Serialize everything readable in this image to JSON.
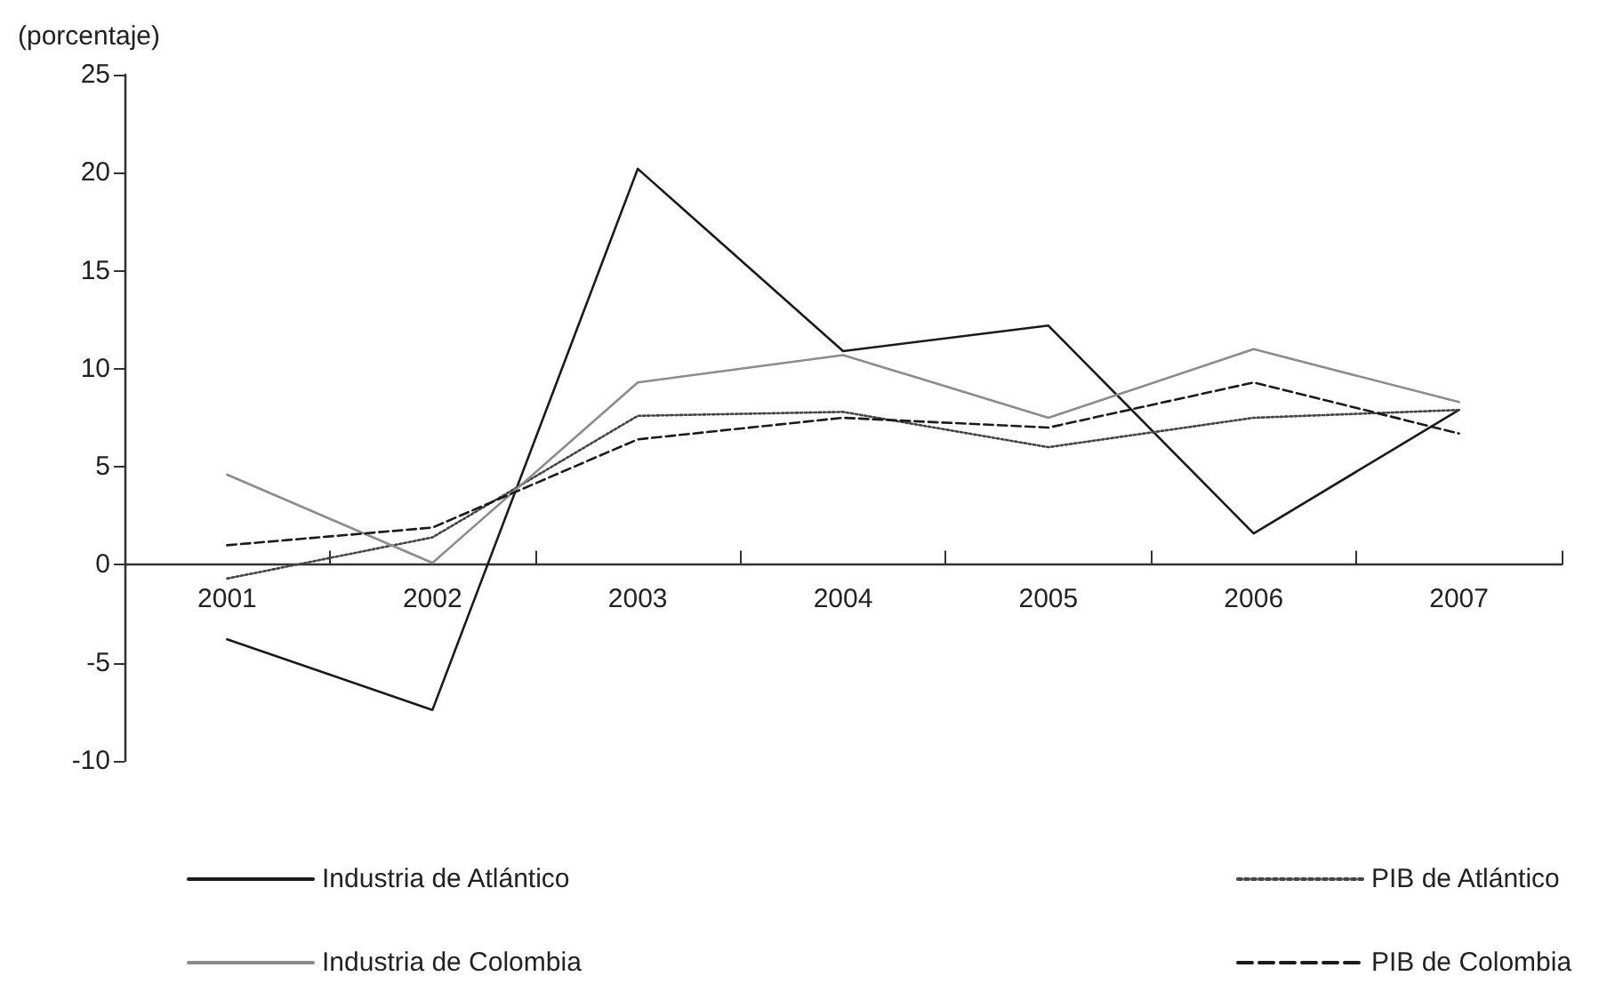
{
  "chart_data": {
    "type": "line",
    "ylabel": "(porcentaje)",
    "categories": [
      "2001",
      "2002",
      "2003",
      "2004",
      "2005",
      "2006",
      "2007"
    ],
    "series": [
      {
        "name": "Industria de Atlántico",
        "color": "#1a1a1a",
        "line_style": "solid",
        "values": [
          -3.8,
          -7.4,
          20.2,
          10.9,
          12.2,
          1.6,
          7.9
        ]
      },
      {
        "name": "PIB de Atlántico",
        "color": "#444444",
        "line_style": "dotted",
        "values": [
          -0.7,
          1.4,
          7.6,
          7.8,
          6.0,
          7.5,
          7.9
        ]
      },
      {
        "name": "Industria de Colombia",
        "color": "#8c8c8c",
        "line_style": "solid",
        "values": [
          4.6,
          0.1,
          9.3,
          10.7,
          7.5,
          11.0,
          8.3
        ]
      },
      {
        "name": "PIB de Colombia",
        "color": "#1a1a1a",
        "line_style": "dashed",
        "values": [
          1.0,
          1.9,
          6.4,
          7.5,
          7.0,
          9.3,
          6.7
        ]
      }
    ],
    "ylim": [
      -10,
      25
    ],
    "yticks": [
      -10,
      -5,
      0,
      5,
      10,
      15,
      20,
      25
    ],
    "legend": "bottom",
    "marker": "none"
  }
}
